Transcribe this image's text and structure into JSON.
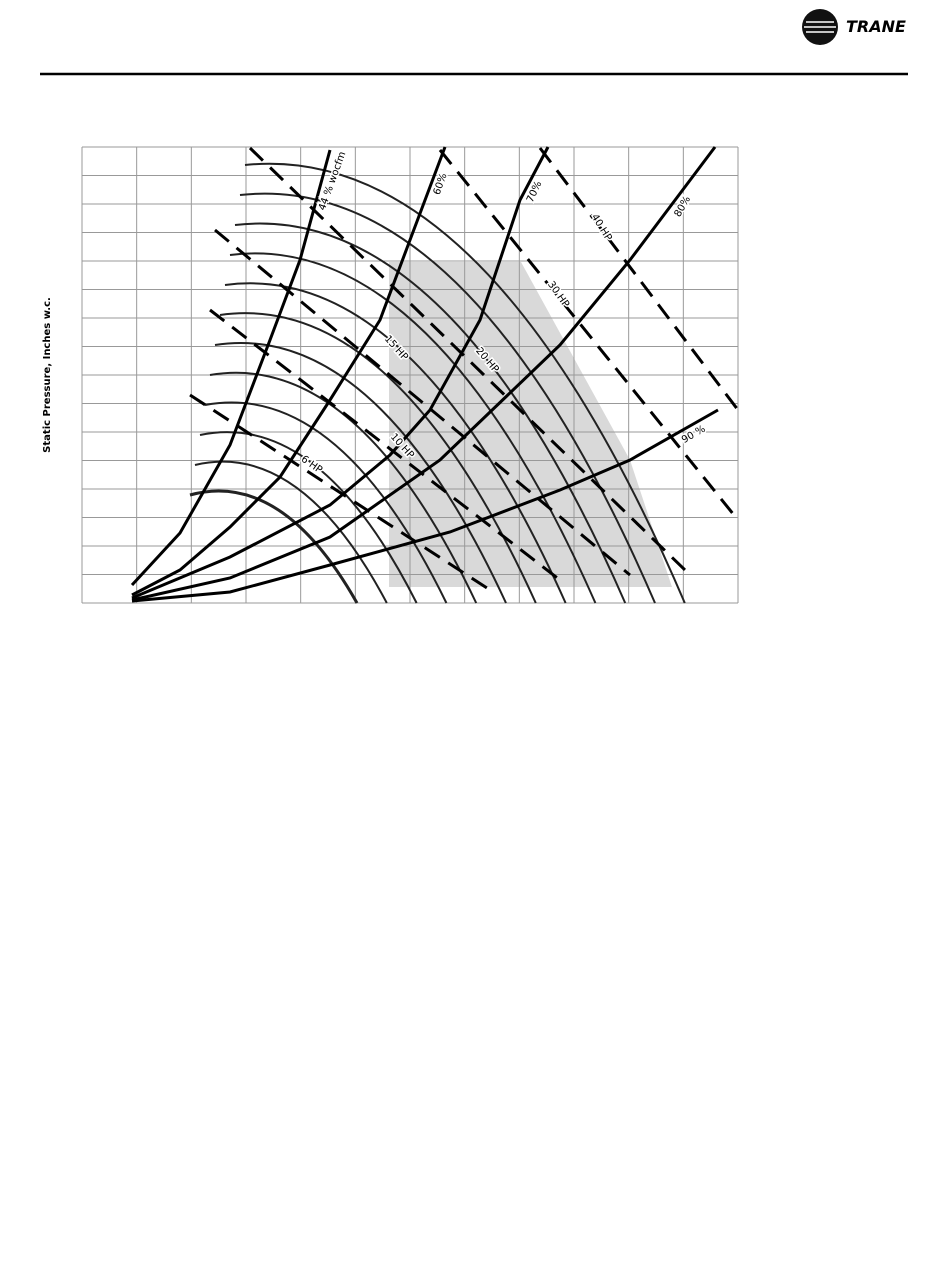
{
  "header": {
    "logo_text": "TRANE"
  },
  "figure": {
    "y_axis_label": "Static Pressure, Inches w.c.",
    "efficiency_labels": [
      "44 % wocfm",
      "60%",
      "70%",
      "80%",
      "90 %"
    ],
    "power_labels": [
      "6 HP",
      "10 HP",
      "15 HP",
      "20 HP",
      "30 HP",
      "40 HP"
    ]
  }
}
